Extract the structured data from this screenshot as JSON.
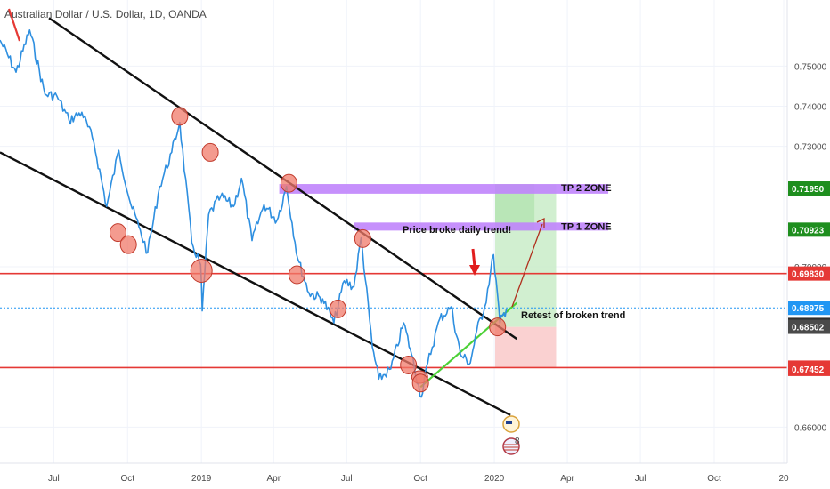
{
  "header": {
    "symbol_title": "Australian Dollar / U.S. Dollar, 1D, OANDA"
  },
  "chart_data": {
    "type": "line",
    "title": "Australian Dollar / U.S. Dollar, 1D, OANDA",
    "xlabel": "",
    "ylabel": "",
    "x_ticks": [
      "Jul",
      "Oct",
      "2019",
      "Apr",
      "Jul",
      "Oct",
      "2020",
      "Apr",
      "Jul",
      "Oct",
      "20"
    ],
    "y_ticks": [
      "0.75000",
      "0.74000",
      "0.73000",
      "0.70000",
      "0.66000"
    ],
    "ylim": [
      0.651,
      0.7665
    ],
    "x_range": [
      "2018-04-25",
      "2020-12-31"
    ],
    "grid": true,
    "series": [
      {
        "values": [
          [
            "2018-04-25",
            0.7565
          ],
          [
            "2018-05-15",
            0.7485
          ],
          [
            "2018-06-01",
            0.759
          ],
          [
            "2018-06-20",
            0.743
          ],
          [
            "2018-07-05",
            0.7425
          ],
          [
            "2018-07-20",
            0.7365
          ],
          [
            "2018-08-05",
            0.7385
          ],
          [
            "2018-08-20",
            0.731
          ],
          [
            "2018-09-05",
            0.715
          ],
          [
            "2018-09-20",
            0.729
          ],
          [
            "2018-10-05",
            0.7155
          ],
          [
            "2018-10-15",
            0.71
          ],
          [
            "2018-10-26",
            0.7035
          ],
          [
            "2018-11-10",
            0.72
          ],
          [
            "2018-11-25",
            0.7285
          ],
          [
            "2018-12-05",
            0.736
          ],
          [
            "2018-12-20",
            0.706
          ],
          [
            "2018-12-31",
            0.7005
          ],
          [
            "2019-01-02",
            0.689
          ],
          [
            "2019-01-10",
            0.713
          ],
          [
            "2019-01-25",
            0.7175
          ],
          [
            "2019-02-10",
            0.715
          ],
          [
            "2019-02-20",
            0.722
          ],
          [
            "2019-03-05",
            0.7065
          ],
          [
            "2019-03-20",
            0.7155
          ],
          [
            "2019-04-05",
            0.7115
          ],
          [
            "2019-04-17",
            0.72
          ],
          [
            "2019-05-01",
            0.702
          ],
          [
            "2019-05-15",
            0.6935
          ],
          [
            "2019-06-01",
            0.692
          ],
          [
            "2019-06-15",
            0.686
          ],
          [
            "2019-06-28",
            0.6965
          ],
          [
            "2019-07-10",
            0.695
          ],
          [
            "2019-07-19",
            0.7072
          ],
          [
            "2019-08-02",
            0.68
          ],
          [
            "2019-08-10",
            0.672
          ],
          [
            "2019-08-25",
            0.6745
          ],
          [
            "2019-09-10",
            0.686
          ],
          [
            "2019-09-20",
            0.678
          ],
          [
            "2019-10-02",
            0.6675
          ],
          [
            "2019-10-10",
            0.676
          ],
          [
            "2019-10-25",
            0.687
          ],
          [
            "2019-11-08",
            0.69
          ],
          [
            "2019-11-20",
            0.678
          ],
          [
            "2019-12-02",
            0.676
          ],
          [
            "2019-12-10",
            0.684
          ],
          [
            "2019-12-20",
            0.69
          ],
          [
            "2019-12-31",
            0.703
          ],
          [
            "2020-01-08",
            0.686
          ],
          [
            "2020-01-16",
            0.6895
          ]
        ]
      }
    ],
    "horizontal_levels": [
      {
        "value": 0.7195,
        "label": "0.71950",
        "color": "#1e8e1e"
      },
      {
        "value": 0.70923,
        "label": "0.70923",
        "color": "#1e8e1e"
      },
      {
        "value": 0.6983,
        "label": "0.69830",
        "color": "#e53935"
      },
      {
        "value": 0.68975,
        "label": "0.68975",
        "color": "#2196f3"
      },
      {
        "value": 0.68549,
        "label": "0.68549",
        "color": "#2f2f2f"
      },
      {
        "value": 0.68502,
        "label": "0.68502",
        "color": "#4a4a4a"
      },
      {
        "value": 0.67485,
        "label": "0.67485",
        "color": "#e53935"
      },
      {
        "value": 0.67475,
        "label": "0.67475",
        "color": "#e53935"
      },
      {
        "value": 0.67452,
        "label": "0.67452",
        "color": "#e53935"
      }
    ],
    "trendlines": [
      {
        "name": "upper-channel",
        "from": [
          "2018-06-25",
          0.762
        ],
        "to": [
          "2020-01-29",
          0.682
        ],
        "color": "#111111"
      },
      {
        "name": "lower-channel",
        "from": [
          "2018-04-25",
          0.7285
        ],
        "to": [
          "2020-01-21",
          0.663
        ],
        "color": "#111111"
      },
      {
        "name": "support-trend",
        "from": [
          "2019-10-01",
          0.67
        ],
        "to": [
          "2020-01-29",
          0.691
        ],
        "color": "#4cd137"
      }
    ],
    "zones": [
      {
        "label": "TP 2 ZONE",
        "from": "2019-04-08",
        "to": "2020-05-22",
        "top": 0.7206,
        "bottom": 0.7182,
        "color": "#c084fc"
      },
      {
        "label": "TP 1 ZONE",
        "from": "2019-07-10",
        "to": "2020-05-22",
        "top": 0.711,
        "bottom": 0.709,
        "color": "#c084fc"
      }
    ],
    "position": {
      "entry_from": "2020-01-02",
      "entry_to": "2020-03-18",
      "entry": 0.685,
      "target_tp2_to": "2020-02-20",
      "target": 0.7205,
      "stop": 0.675
    },
    "touch_points": [
      [
        "2018-12-05",
        0.7375
      ],
      [
        "2019-01-12",
        0.7285
      ],
      [
        "2019-04-20",
        0.7208
      ],
      [
        "2019-07-21",
        0.707
      ],
      [
        "2018-09-19",
        0.7085
      ],
      [
        "2018-10-02",
        0.7055
      ],
      [
        "2019-01-01",
        0.699
      ],
      [
        "2019-04-30",
        0.698
      ],
      [
        "2019-06-20",
        0.6895
      ],
      [
        "2019-09-16",
        0.6755
      ],
      [
        "2019-09-30",
        0.6725
      ],
      [
        "2019-10-01",
        0.671
      ],
      [
        "2020-01-05",
        0.685
      ]
    ],
    "annotations": [
      {
        "text": "Price broke daily trend!"
      },
      {
        "text": "Retest of broken trend"
      },
      {
        "text": "TP 2 ZONE"
      },
      {
        "text": "TP 1 ZONE"
      }
    ],
    "event_badges": {
      "count": "8"
    }
  }
}
